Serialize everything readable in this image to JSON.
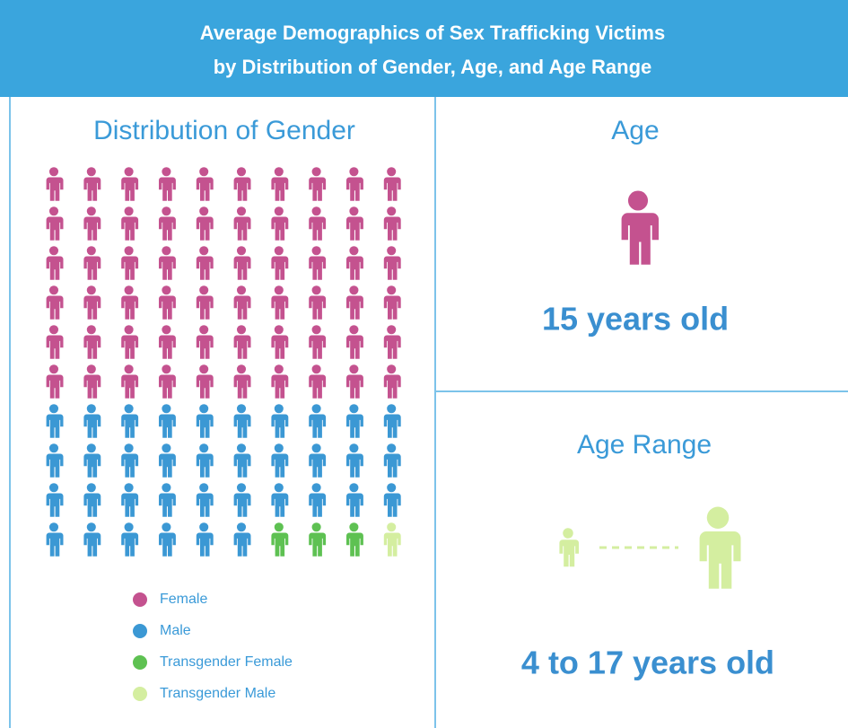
{
  "header": {
    "title": [
      "Average Demographics of Sex Trafficking Victims",
      "by Distribution of Gender, Age, and Age Range"
    ]
  },
  "gender": {
    "type": "pictogram",
    "title": "Distribution of Gender",
    "categories": [
      "Female",
      "Male",
      "Transgender Female",
      "Transgender Male"
    ],
    "values": [
      60,
      36,
      3,
      1
    ],
    "colors": [
      "#c4528f",
      "#3b98d4",
      "#5ec152",
      "#d4eea0"
    ],
    "columns": 10
  },
  "age": {
    "title": "Age",
    "text": "15 years old"
  },
  "age_range": {
    "title": "Age Range",
    "text": "4 to 17 years old"
  }
}
